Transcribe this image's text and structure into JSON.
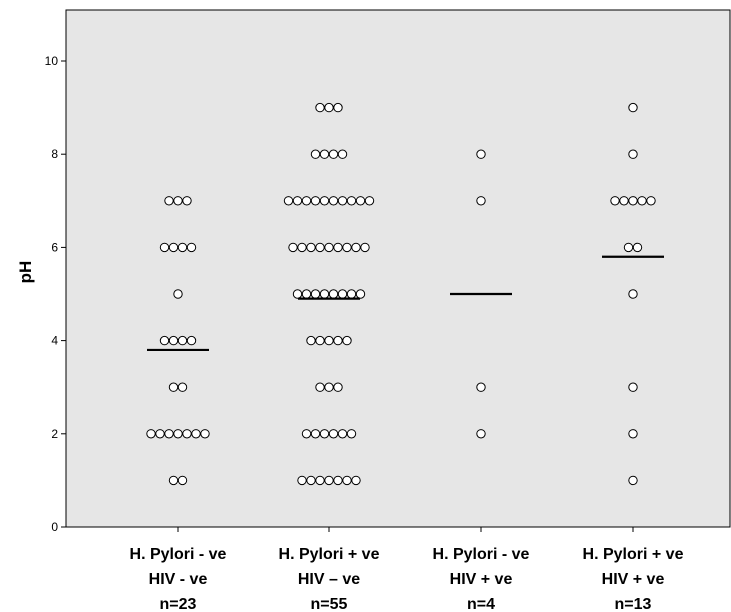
{
  "chart_data": {
    "type": "scatter",
    "subtype": "dot-plot",
    "title": "",
    "xlabel": "",
    "ylabel": "pH",
    "ylim": [
      0,
      11
    ],
    "yticks": [
      0,
      2,
      4,
      6,
      8,
      10
    ],
    "grid": false,
    "background_color": "#e6e6e6",
    "marker": "open-circle",
    "categories": [
      {
        "label_lines": [
          "H. Pylori - ve",
          "HIV - ve",
          "n=23"
        ],
        "points": [
          {
            "y": 7,
            "count": 3
          },
          {
            "y": 6,
            "count": 4
          },
          {
            "y": 5,
            "count": 1
          },
          {
            "y": 4,
            "count": 4
          },
          {
            "y": 3,
            "count": 2
          },
          {
            "y": 2,
            "count": 7
          },
          {
            "y": 1,
            "count": 2
          }
        ],
        "median": 3.8
      },
      {
        "label_lines": [
          "H. Pylori + ve",
          "HIV – ve",
          "n=55"
        ],
        "points": [
          {
            "y": 9,
            "count": 3
          },
          {
            "y": 8,
            "count": 4
          },
          {
            "y": 7,
            "count": 10
          },
          {
            "y": 6,
            "count": 9
          },
          {
            "y": 5,
            "count": 8
          },
          {
            "y": 4,
            "count": 5
          },
          {
            "y": 3,
            "count": 3
          },
          {
            "y": 2,
            "count": 6
          },
          {
            "y": 1,
            "count": 7
          }
        ],
        "median": 4.9
      },
      {
        "label_lines": [
          "H. Pylori - ve",
          "HIV + ve",
          "n=4"
        ],
        "points": [
          {
            "y": 8,
            "count": 1
          },
          {
            "y": 7,
            "count": 1
          },
          {
            "y": 3,
            "count": 1
          },
          {
            "y": 2,
            "count": 1
          }
        ],
        "median": 5.0
      },
      {
        "label_lines": [
          "H. Pylori + ve",
          "HIV + ve",
          "n=13"
        ],
        "points": [
          {
            "y": 9,
            "count": 1
          },
          {
            "y": 8,
            "count": 1
          },
          {
            "y": 7,
            "count": 5
          },
          {
            "y": 6,
            "count": 2
          },
          {
            "y": 5,
            "count": 1
          },
          {
            "y": 3,
            "count": 1
          },
          {
            "y": 2,
            "count": 1
          },
          {
            "y": 1,
            "count": 1
          }
        ],
        "median": 5.8
      }
    ]
  }
}
